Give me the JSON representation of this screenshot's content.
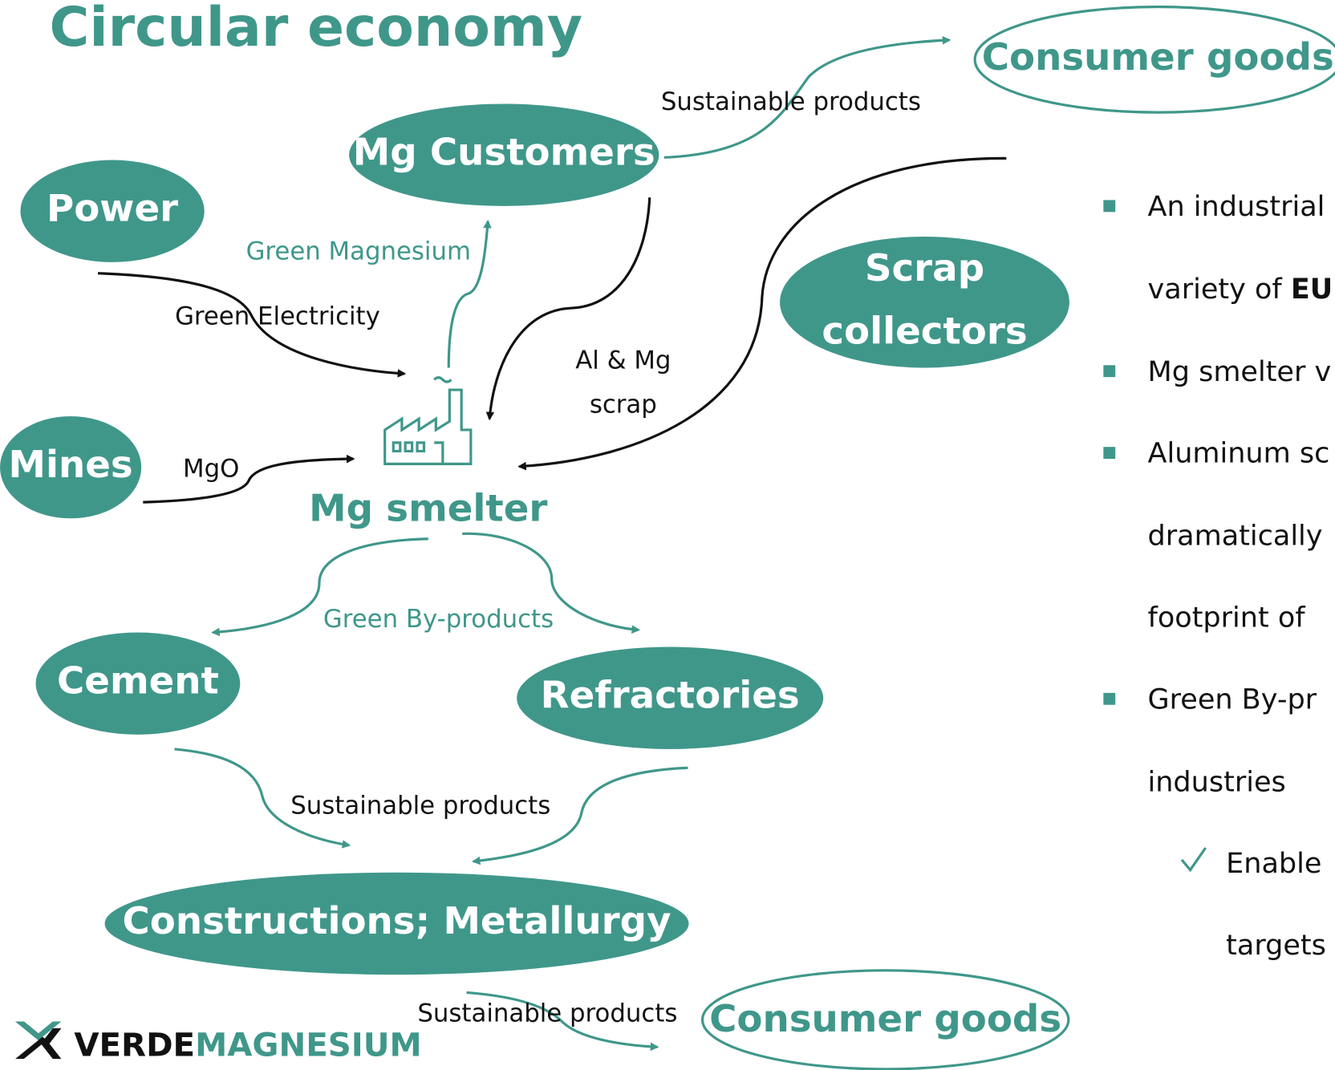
{
  "title": "Circular economy",
  "nodes": {
    "consumer_goods_top": "Consumer goods",
    "mg_customers": "Mg Customers",
    "power": "Power",
    "scrap_collectors": [
      "Scrap",
      "collectors"
    ],
    "mines": "Mines",
    "mg_smelter": "Mg smelter",
    "cement": "Cement",
    "refractories": "Refractories",
    "constructions": "Constructions; Metallurgy",
    "consumer_goods_bottom": "Consumer goods"
  },
  "edges": {
    "sustainable_top": "Sustainable products",
    "green_magnesium": "Green Magnesium",
    "green_electricity": "Green Electricity",
    "scrap": [
      "Al & Mg",
      "scrap"
    ],
    "mgo": "MgO",
    "green_byproducts": "Green By-products",
    "sustainable_middle": "Sustainable products",
    "sustainable_bottom": "Sustainable products"
  },
  "bullets": {
    "lines": [
      "An industrial",
      "Mg smelter v",
      "Aluminum sc",
      "dramatically",
      "footprint of",
      "Green By-pr",
      "industries"
    ],
    "variety": [
      "variety of ",
      "EU"
    ],
    "check": [
      "Enable",
      "targets"
    ]
  },
  "logo": [
    "VERDE",
    "MAGNESIUM"
  ]
}
